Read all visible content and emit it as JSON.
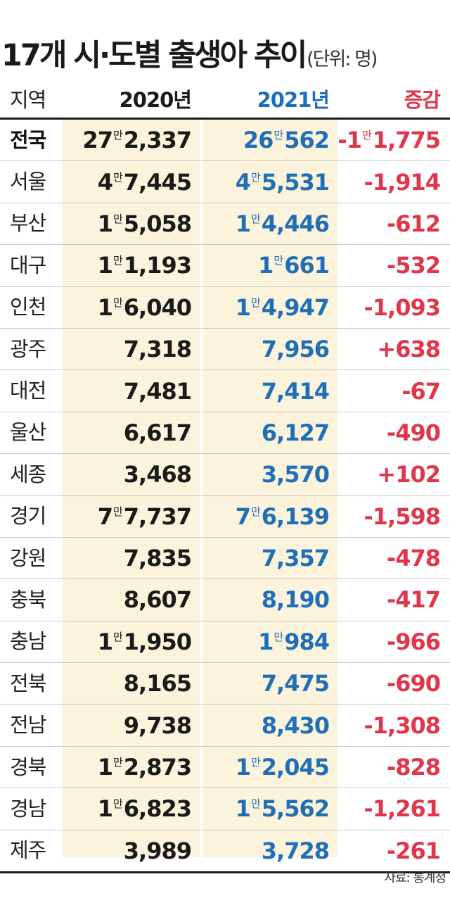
{
  "title": "17개 시·도별 출생아 추이",
  "unit_note": "(단위: 명)",
  "source": "자료: 통계청",
  "colors": {
    "col_2021": "#1f6fb8",
    "col_change": "#e0354b",
    "band": "#fbf3dc"
  },
  "chart_data": {
    "type": "table",
    "title": "17개 시·도별 출생아 추이",
    "unit": "(단위: 명)",
    "columns": [
      "지역",
      "2020년",
      "2021년",
      "증감"
    ],
    "rows": [
      {
        "region": "전국",
        "y2020": {
          "man": "27",
          "rest": "2,337"
        },
        "y2021": {
          "man": "26",
          "rest": "562"
        },
        "change": {
          "prefix": "-1",
          "man": true,
          "rest": "1,775"
        },
        "v2020": 272337,
        "v2021": 260562,
        "diff": -11775
      },
      {
        "region": "서울",
        "y2020": {
          "man": "4",
          "rest": "7,445"
        },
        "y2021": {
          "man": "4",
          "rest": "5,531"
        },
        "change": {
          "prefix": "",
          "man": false,
          "rest": "-1,914"
        },
        "v2020": 47445,
        "v2021": 45531,
        "diff": -1914
      },
      {
        "region": "부산",
        "y2020": {
          "man": "1",
          "rest": "5,058"
        },
        "y2021": {
          "man": "1",
          "rest": "4,446"
        },
        "change": {
          "prefix": "",
          "man": false,
          "rest": "-612"
        },
        "v2020": 15058,
        "v2021": 14446,
        "diff": -612
      },
      {
        "region": "대구",
        "y2020": {
          "man": "1",
          "rest": "1,193"
        },
        "y2021": {
          "man": "1",
          "rest": "661"
        },
        "change": {
          "prefix": "",
          "man": false,
          "rest": "-532"
        },
        "v2020": 11193,
        "v2021": 10661,
        "diff": -532
      },
      {
        "region": "인천",
        "y2020": {
          "man": "1",
          "rest": "6,040"
        },
        "y2021": {
          "man": "1",
          "rest": "4,947"
        },
        "change": {
          "prefix": "",
          "man": false,
          "rest": "-1,093"
        },
        "v2020": 16040,
        "v2021": 14947,
        "diff": -1093
      },
      {
        "region": "광주",
        "y2020": {
          "man": "",
          "rest": "7,318"
        },
        "y2021": {
          "man": "",
          "rest": "7,956"
        },
        "change": {
          "prefix": "",
          "man": false,
          "rest": "+638"
        },
        "v2020": 7318,
        "v2021": 7956,
        "diff": 638
      },
      {
        "region": "대전",
        "y2020": {
          "man": "",
          "rest": "7,481"
        },
        "y2021": {
          "man": "",
          "rest": "7,414"
        },
        "change": {
          "prefix": "",
          "man": false,
          "rest": "-67"
        },
        "v2020": 7481,
        "v2021": 7414,
        "diff": -67
      },
      {
        "region": "울산",
        "y2020": {
          "man": "",
          "rest": "6,617"
        },
        "y2021": {
          "man": "",
          "rest": "6,127"
        },
        "change": {
          "prefix": "",
          "man": false,
          "rest": "-490"
        },
        "v2020": 6617,
        "v2021": 6127,
        "diff": -490
      },
      {
        "region": "세종",
        "y2020": {
          "man": "",
          "rest": "3,468"
        },
        "y2021": {
          "man": "",
          "rest": "3,570"
        },
        "change": {
          "prefix": "",
          "man": false,
          "rest": "+102"
        },
        "v2020": 3468,
        "v2021": 3570,
        "diff": 102
      },
      {
        "region": "경기",
        "y2020": {
          "man": "7",
          "rest": "7,737"
        },
        "y2021": {
          "man": "7",
          "rest": "6,139"
        },
        "change": {
          "prefix": "",
          "man": false,
          "rest": "-1,598"
        },
        "v2020": 77737,
        "v2021": 76139,
        "diff": -1598
      },
      {
        "region": "강원",
        "y2020": {
          "man": "",
          "rest": "7,835"
        },
        "y2021": {
          "man": "",
          "rest": "7,357"
        },
        "change": {
          "prefix": "",
          "man": false,
          "rest": "-478"
        },
        "v2020": 7835,
        "v2021": 7357,
        "diff": -478
      },
      {
        "region": "충북",
        "y2020": {
          "man": "",
          "rest": "8,607"
        },
        "y2021": {
          "man": "",
          "rest": "8,190"
        },
        "change": {
          "prefix": "",
          "man": false,
          "rest": "-417"
        },
        "v2020": 8607,
        "v2021": 8190,
        "diff": -417
      },
      {
        "region": "충남",
        "y2020": {
          "man": "1",
          "rest": "1,950"
        },
        "y2021": {
          "man": "1",
          "rest": "984"
        },
        "change": {
          "prefix": "",
          "man": false,
          "rest": "-966"
        },
        "v2020": 11950,
        "v2021": 10984,
        "diff": -966
      },
      {
        "region": "전북",
        "y2020": {
          "man": "",
          "rest": "8,165"
        },
        "y2021": {
          "man": "",
          "rest": "7,475"
        },
        "change": {
          "prefix": "",
          "man": false,
          "rest": "-690"
        },
        "v2020": 8165,
        "v2021": 7475,
        "diff": -690
      },
      {
        "region": "전남",
        "y2020": {
          "man": "",
          "rest": "9,738"
        },
        "y2021": {
          "man": "",
          "rest": "8,430"
        },
        "change": {
          "prefix": "",
          "man": false,
          "rest": "-1,308"
        },
        "v2020": 9738,
        "v2021": 8430,
        "diff": -1308
      },
      {
        "region": "경북",
        "y2020": {
          "man": "1",
          "rest": "2,873"
        },
        "y2021": {
          "man": "1",
          "rest": "2,045"
        },
        "change": {
          "prefix": "",
          "man": false,
          "rest": "-828"
        },
        "v2020": 12873,
        "v2021": 12045,
        "diff": -828
      },
      {
        "region": "경남",
        "y2020": {
          "man": "1",
          "rest": "6,823"
        },
        "y2021": {
          "man": "1",
          "rest": "5,562"
        },
        "change": {
          "prefix": "",
          "man": false,
          "rest": "-1,261"
        },
        "v2020": 16823,
        "v2021": 15562,
        "diff": -1261
      },
      {
        "region": "제주",
        "y2020": {
          "man": "",
          "rest": "3,989"
        },
        "y2021": {
          "man": "",
          "rest": "3,728"
        },
        "change": {
          "prefix": "",
          "man": false,
          "rest": "-261"
        },
        "v2020": 3989,
        "v2021": 3728,
        "diff": -261
      }
    ],
    "man_label": "만"
  }
}
